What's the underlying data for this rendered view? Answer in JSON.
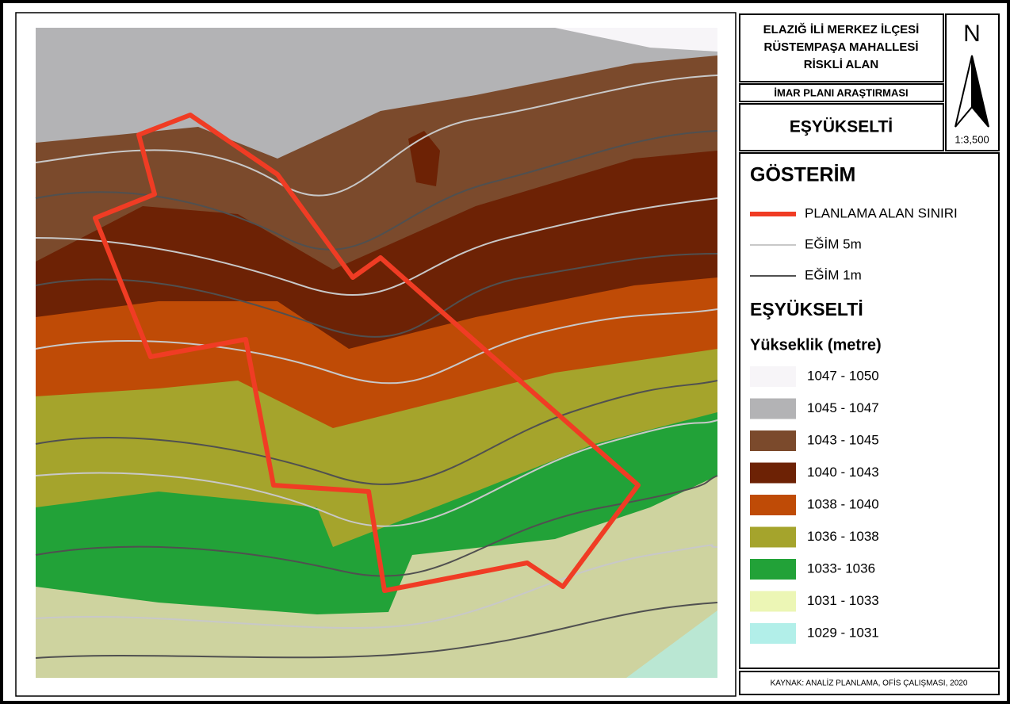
{
  "header": {
    "title_lines": [
      "ELAZIĞ İLİ MERKEZ İLÇESİ",
      "RÜSTEMPAŞA MAHALLESİ",
      "RİSKLİ ALAN"
    ],
    "subtitle": "İMAR PLANI ARAŞTIRMASI",
    "map_title": "EŞYÜKSELTİ"
  },
  "north": {
    "label": "N",
    "scale": "1:3,500"
  },
  "legend": {
    "title": "GÖSTERİM",
    "lines": [
      {
        "label": "PLANLAMA ALAN SINIRI",
        "color": "#f03c24"
      },
      {
        "label": "EĞİM 5m",
        "color": "#c8c8c8"
      },
      {
        "label": "EĞİM 1m",
        "color": "#505050"
      }
    ],
    "elevation_title": "EŞYÜKSELTİ",
    "elevation_subtitle": "Yükseklik (metre)",
    "classes": [
      {
        "label": "1047 - 1050",
        "color": "#f7f5f8"
      },
      {
        "label": "1045 - 1047",
        "color": "#b3b3b5"
      },
      {
        "label": "1043 - 1045",
        "color": "#7b4a2c"
      },
      {
        "label": "1040 - 1043",
        "color": "#6d2205"
      },
      {
        "label": "1038 - 1040",
        "color": "#bf4b06"
      },
      {
        "label": "1036 - 1038",
        "color": "#a5a42c"
      },
      {
        "label": "1033- 1036",
        "color": "#22a238"
      },
      {
        "label": "1031 - 1033",
        "color": "#ecf6b5"
      },
      {
        "label": "1029 - 1031",
        "color": "#b2efe9"
      }
    ]
  },
  "source": "KAYNAK: ANALİZ PLANLAMA, OFİS ÇALIŞMASI, 2020"
}
